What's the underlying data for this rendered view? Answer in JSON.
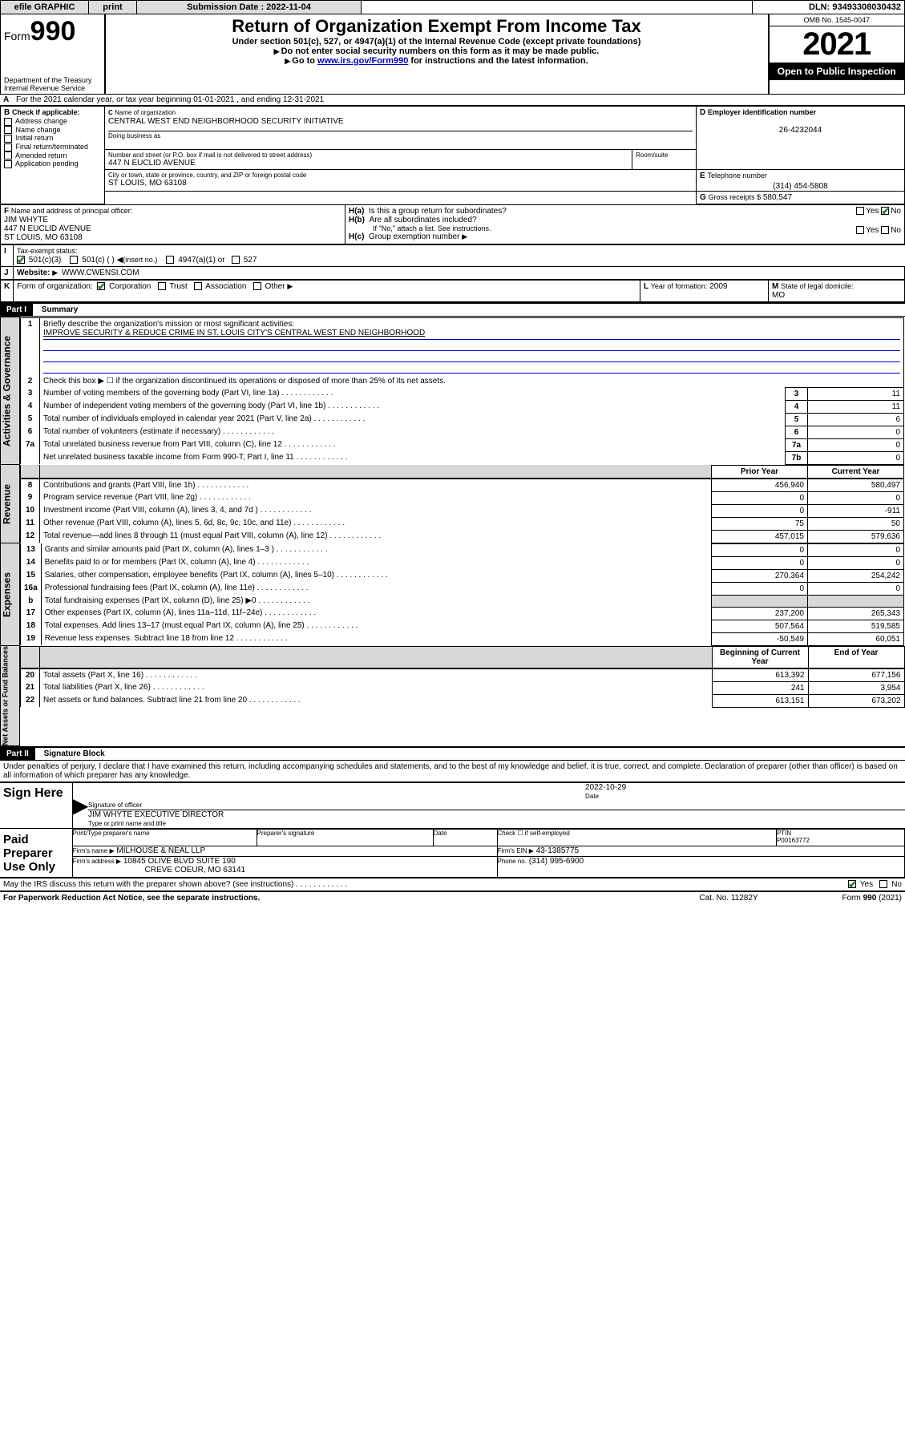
{
  "topbar": {
    "efile": "efile GRAPHIC",
    "print": "print",
    "sub_label": "Submission Date : 2022-11-04",
    "dln": "DLN: 93493308030432"
  },
  "hdr": {
    "form": "Form",
    "form_no": "990",
    "dept1": "Department of the Treasury",
    "dept2": "Internal Revenue Service",
    "title": "Return of Organization Exempt From Income Tax",
    "sub1": "Under section 501(c), 527, or 4947(a)(1) of the Internal Revenue Code (except private foundations)",
    "sub2": "Do not enter social security numbers on this form as it may be made public.",
    "sub3_pre": "Go to ",
    "sub3_link": "www.irs.gov/Form990",
    "sub3_post": " for instructions and the latest information.",
    "omb": "OMB No. 1545-0047",
    "year": "2021",
    "open": "Open to Public Inspection"
  },
  "A": {
    "text": "For the 2021 calendar year, or tax year beginning 01-01-2021      , and ending 12-31-2021"
  },
  "B": {
    "title": "Check if applicable:",
    "addr_change": "Address change",
    "name_change": "Name change",
    "init_return": "Initial return",
    "final": "Final return/terminated",
    "amended": "Amended return",
    "app_pending": "Application pending"
  },
  "C": {
    "label": "Name of organization",
    "name": "CENTRAL WEST END NEIGHBORHOOD SECURITY INITIATIVE",
    "dba_label": "Doing business as",
    "street_label": "Number and street (or P.O. box if mail is not delivered to street address)",
    "room_label": "Room/suite",
    "street": "447 N EUCLID AVENUE",
    "city_label": "City or town, state or province, country, and ZIP or foreign postal code",
    "city": "ST LOUIS, MO  63108"
  },
  "D": {
    "label": "Employer identification number",
    "ein": "26-4232044"
  },
  "E": {
    "label": "Telephone number",
    "phone": "(314) 454-5808"
  },
  "G": {
    "label": "Gross receipts $",
    "amt": "580,547"
  },
  "F": {
    "label": "Name and address of principal officer:",
    "name": "JIM WHYTE",
    "street": "447 N EUCLID AVENUE",
    "city": "ST LOUIS, MO  63108"
  },
  "H": {
    "a": "Is this a group return for subordinates?",
    "b": "Are all subordinates included?",
    "b_note": "If \"No,\" attach a list. See instructions.",
    "c": "Group exemption number",
    "yes": "Yes",
    "no": "No"
  },
  "I": {
    "label": "Tax-exempt status:",
    "c3": "501(c)(3)",
    "c": "501(c) (  )",
    "insert": "(insert no.)",
    "a1": "4947(a)(1) or",
    "s527": "527"
  },
  "J": {
    "label": "Website:",
    "val": "WWW.CWENSI.COM"
  },
  "K": {
    "label": "Form of organization:",
    "corp": "Corporation",
    "trust": "Trust",
    "assoc": "Association",
    "other": "Other"
  },
  "L": {
    "label": "Year of formation:",
    "val": "2009"
  },
  "M": {
    "label": "State of legal domicile:",
    "val": "MO"
  },
  "part1": {
    "title": "Part I",
    "heading": "Summary"
  },
  "vert": {
    "ag": "Activities & Governance",
    "rev": "Revenue",
    "exp": "Expenses",
    "na": "Net Assets or Fund Balances"
  },
  "summary": {
    "l1_label": "Briefly describe the organization's mission or most significant activities:",
    "mission": "IMPROVE SECURITY & REDUCE CRIME IN ST. LOUIS CITY'S CENTRAL WEST END NEIGHBORHOOD",
    "l2": "Check this box ▶ ☐  if the organization discontinued its operations or disposed of more than 25% of its net assets.",
    "lines_ag": [
      {
        "n": "3",
        "d": "Number of voting members of the governing body (Part VI, line 1a)",
        "c": "3",
        "v": "11"
      },
      {
        "n": "4",
        "d": "Number of independent voting members of the governing body (Part VI, line 1b)",
        "c": "4",
        "v": "11"
      },
      {
        "n": "5",
        "d": "Total number of individuals employed in calendar year 2021 (Part V, line 2a)",
        "c": "5",
        "v": "6"
      },
      {
        "n": "6",
        "d": "Total number of volunteers (estimate if necessary)",
        "c": "6",
        "v": "0"
      },
      {
        "n": "7a",
        "d": "Total unrelated business revenue from Part VIII, column (C), line 12",
        "c": "7a",
        "v": "0"
      },
      {
        "n": "",
        "d": "Net unrelated business taxable income from Form 990-T, Part I, line 11",
        "c": "7b",
        "v": "0"
      }
    ],
    "prior": "Prior Year",
    "current": "Current Year",
    "lines_rev": [
      {
        "n": "8",
        "d": "Contributions and grants (Part VIII, line 1h)",
        "p": "456,940",
        "c": "580,497"
      },
      {
        "n": "9",
        "d": "Program service revenue (Part VIII, line 2g)",
        "p": "0",
        "c": "0"
      },
      {
        "n": "10",
        "d": "Investment income (Part VIII, column (A), lines 3, 4, and 7d )",
        "p": "0",
        "c": "-911"
      },
      {
        "n": "11",
        "d": "Other revenue (Part VIII, column (A), lines 5, 6d, 8c, 9c, 10c, and 11e)",
        "p": "75",
        "c": "50"
      },
      {
        "n": "12",
        "d": "Total revenue—add lines 8 through 11 (must equal Part VIII, column (A), line 12)",
        "p": "457,015",
        "c": "579,636"
      }
    ],
    "lines_exp": [
      {
        "n": "13",
        "d": "Grants and similar amounts paid (Part IX, column (A), lines 1–3 )",
        "p": "0",
        "c": "0"
      },
      {
        "n": "14",
        "d": "Benefits paid to or for members (Part IX, column (A), line 4)",
        "p": "0",
        "c": "0"
      },
      {
        "n": "15",
        "d": "Salaries, other compensation, employee benefits (Part IX, column (A), lines 5–10)",
        "p": "270,364",
        "c": "254,242"
      },
      {
        "n": "16a",
        "d": "Professional fundraising fees (Part IX, column (A), line 11e)",
        "p": "0",
        "c": "0"
      },
      {
        "n": "b",
        "d": "Total fundraising expenses (Part IX, column (D), line 25) ▶0",
        "p": "—grey—",
        "c": "—grey—"
      },
      {
        "n": "17",
        "d": "Other expenses (Part IX, column (A), lines 11a–11d, 11f–24e)",
        "p": "237,200",
        "c": "265,343"
      },
      {
        "n": "18",
        "d": "Total expenses. Add lines 13–17 (must equal Part IX, column (A), line 25)",
        "p": "507,564",
        "c": "519,585"
      },
      {
        "n": "19",
        "d": "Revenue less expenses. Subtract line 18 from line 12",
        "p": "-50,549",
        "c": "60,051"
      }
    ],
    "begin": "Beginning of Current Year",
    "end": "End of Year",
    "lines_na": [
      {
        "n": "20",
        "d": "Total assets (Part X, line 16)",
        "p": "613,392",
        "c": "677,156"
      },
      {
        "n": "21",
        "d": "Total liabilities (Part X, line 26)",
        "p": "241",
        "c": "3,954"
      },
      {
        "n": "22",
        "d": "Net assets or fund balances. Subtract line 21 from line 20",
        "p": "613,151",
        "c": "673,202"
      }
    ]
  },
  "part2": {
    "title": "Part II",
    "heading": "Signature Block"
  },
  "sig": {
    "penalties": "Under penalties of perjury, I declare that I have examined this return, including accompanying schedules and statements, and to the best of my knowledge and belief, it is true, correct, and complete. Declaration of preparer (other than officer) is based on all information of which preparer has any knowledge.",
    "sign_here": "Sign Here",
    "sig_officer": "Signature of officer",
    "date_label": "Date",
    "date": "2022-10-29",
    "officer": "JIM WHYTE EXECUTIVE DIRECTOR",
    "type_name": "Type or print name and title",
    "paid": "Paid Preparer Use Only",
    "pt_name_l": "Print/Type preparer's name",
    "pt_sig_l": "Preparer's signature",
    "pt_date_l": "Date",
    "pt_check": "Check ☐ if self-employed",
    "ptin_l": "PTIN",
    "ptin": "P00163772",
    "firm_name_l": "Firm's name    ▶",
    "firm_name": "MILHOUSE & NEAL LLP",
    "firm_ein_l": "Firm's EIN ▶",
    "firm_ein": "43-1385775",
    "firm_addr_l": "Firm's address ▶",
    "firm_addr1": "10845 OLIVE BLVD SUITE 190",
    "firm_addr2": "CREVE COEUR, MO  63141",
    "firm_phone_l": "Phone no.",
    "firm_phone": "(314) 995-6900"
  },
  "footer": {
    "discuss": "May the IRS discuss this return with the preparer shown above? (see instructions)",
    "paperwork": "For Paperwork Reduction Act Notice, see the separate instructions.",
    "cat": "Cat. No. 11282Y",
    "formno": "Form 990 (2021)",
    "yes": "Yes",
    "no": "No"
  }
}
